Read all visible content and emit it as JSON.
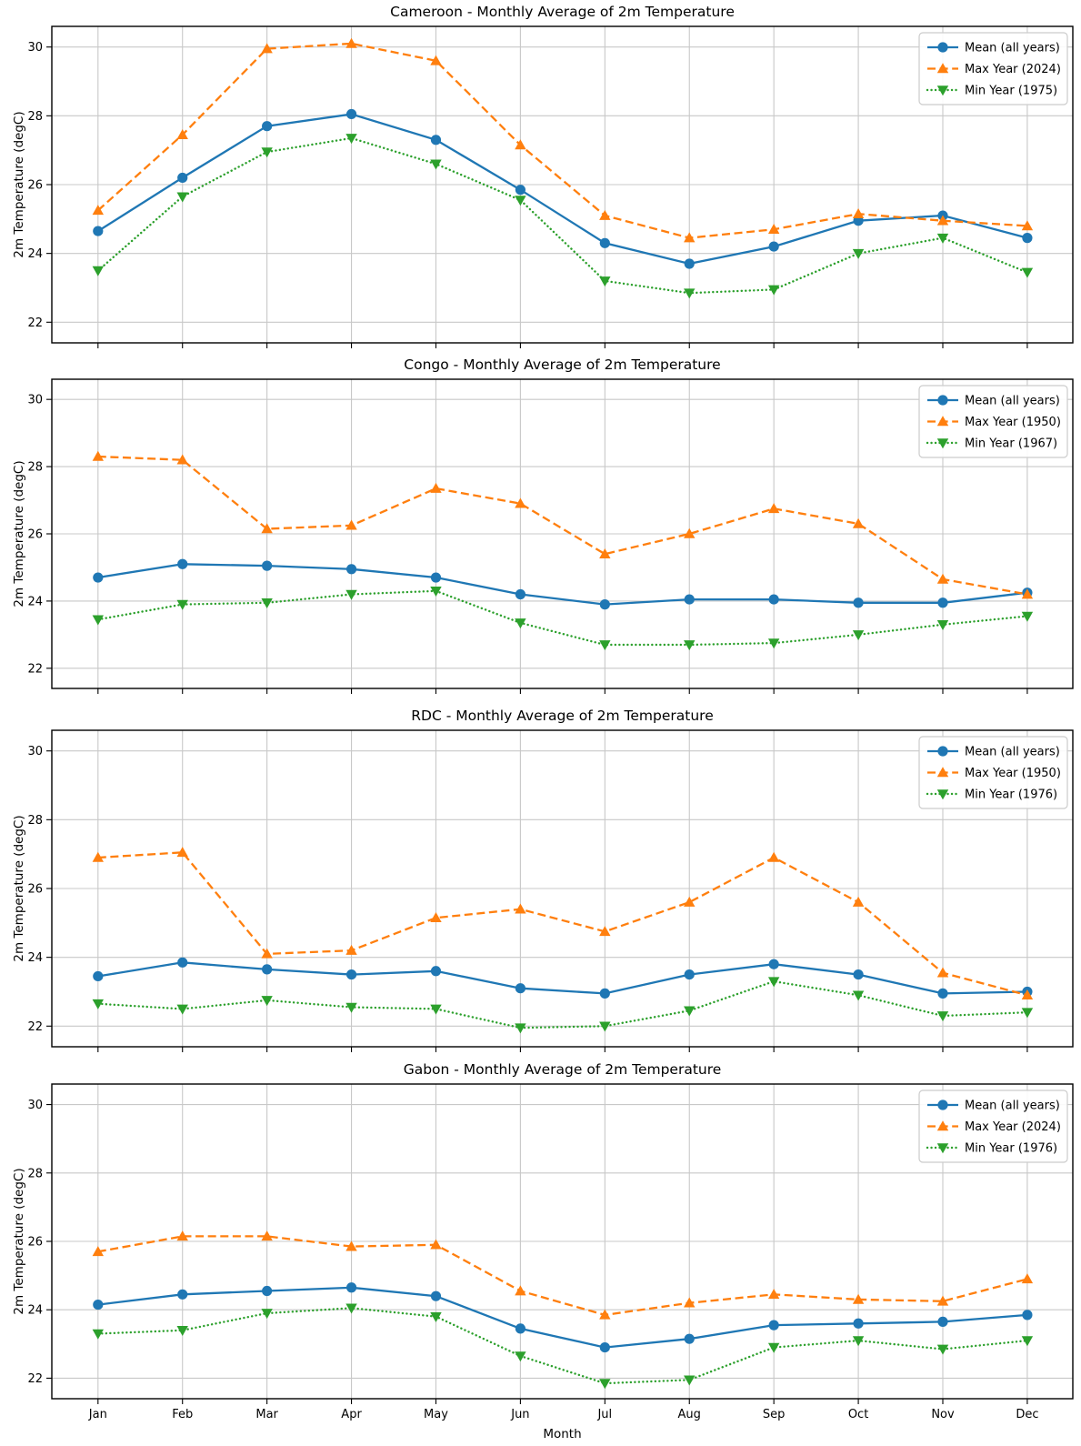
{
  "figure": {
    "xlabel": "Month",
    "ylabel": "2m Temperature (degC)",
    "months": [
      "Jan",
      "Feb",
      "Mar",
      "Apr",
      "May",
      "Jun",
      "Jul",
      "Aug",
      "Sep",
      "Oct",
      "Nov",
      "Dec"
    ],
    "yticks": [
      22,
      24,
      26,
      28,
      30
    ],
    "colors": {
      "mean": "#1f77b4",
      "max": "#ff7f0e",
      "min": "#2ca02c",
      "grid": "#c8c8c8",
      "axis": "#000000",
      "legend_border": "#cccccc"
    }
  },
  "chart_data": [
    {
      "type": "line",
      "title": "Cameroon - Monthly Average of 2m Temperature",
      "ylabel": "2m Temperature (degC)",
      "categories": [
        "Jan",
        "Feb",
        "Mar",
        "Apr",
        "May",
        "Jun",
        "Jul",
        "Aug",
        "Sep",
        "Oct",
        "Nov",
        "Dec"
      ],
      "ylim": [
        21.4,
        30.6
      ],
      "yticks": [
        22,
        24,
        26,
        28,
        30
      ],
      "grid": true,
      "legend_position": "upper right",
      "series": [
        {
          "name": "Mean (all years)",
          "style": "solid-circle",
          "color": "#1f77b4",
          "values": [
            24.65,
            26.2,
            27.7,
            28.05,
            27.3,
            25.85,
            24.3,
            23.7,
            24.2,
            24.95,
            25.1,
            24.45
          ]
        },
        {
          "name": "Max Year (2024)",
          "style": "dashed-triangle-up",
          "color": "#ff7f0e",
          "values": [
            25.25,
            27.45,
            29.95,
            30.1,
            29.6,
            27.15,
            25.1,
            24.45,
            24.7,
            25.15,
            24.95,
            24.8
          ]
        },
        {
          "name": "Min Year (1975)",
          "style": "dotted-triangle-down",
          "color": "#2ca02c",
          "values": [
            23.5,
            25.65,
            26.95,
            27.35,
            26.6,
            25.55,
            23.2,
            22.85,
            22.95,
            24.0,
            24.45,
            23.45
          ]
        }
      ]
    },
    {
      "type": "line",
      "title": "Congo - Monthly Average of 2m Temperature",
      "ylabel": "2m Temperature (degC)",
      "categories": [
        "Jan",
        "Feb",
        "Mar",
        "Apr",
        "May",
        "Jun",
        "Jul",
        "Aug",
        "Sep",
        "Oct",
        "Nov",
        "Dec"
      ],
      "ylim": [
        21.4,
        30.6
      ],
      "yticks": [
        22,
        24,
        26,
        28,
        30
      ],
      "grid": true,
      "legend_position": "upper right",
      "series": [
        {
          "name": "Mean (all years)",
          "style": "solid-circle",
          "color": "#1f77b4",
          "values": [
            24.7,
            25.1,
            25.05,
            24.95,
            24.7,
            24.2,
            23.9,
            24.05,
            24.05,
            23.95,
            23.95,
            24.25
          ]
        },
        {
          "name": "Max Year (1950)",
          "style": "dashed-triangle-up",
          "color": "#ff7f0e",
          "values": [
            28.3,
            28.2,
            26.15,
            26.25,
            27.35,
            26.9,
            25.4,
            26.0,
            26.75,
            26.3,
            24.65,
            24.2
          ]
        },
        {
          "name": "Min Year (1967)",
          "style": "dotted-triangle-down",
          "color": "#2ca02c",
          "values": [
            23.45,
            23.9,
            23.95,
            24.2,
            24.3,
            23.35,
            22.7,
            22.7,
            22.75,
            23.0,
            23.3,
            23.55
          ]
        }
      ]
    },
    {
      "type": "line",
      "title": "RDC - Monthly Average of 2m Temperature",
      "ylabel": "2m Temperature (degC)",
      "categories": [
        "Jan",
        "Feb",
        "Mar",
        "Apr",
        "May",
        "Jun",
        "Jul",
        "Aug",
        "Sep",
        "Oct",
        "Nov",
        "Dec"
      ],
      "ylim": [
        21.4,
        30.6
      ],
      "yticks": [
        22,
        24,
        26,
        28,
        30
      ],
      "grid": true,
      "legend_position": "upper right",
      "series": [
        {
          "name": "Mean (all years)",
          "style": "solid-circle",
          "color": "#1f77b4",
          "values": [
            23.45,
            23.85,
            23.65,
            23.5,
            23.6,
            23.1,
            22.95,
            23.5,
            23.8,
            23.5,
            22.95,
            23.0
          ]
        },
        {
          "name": "Max Year (1950)",
          "style": "dashed-triangle-up",
          "color": "#ff7f0e",
          "values": [
            26.9,
            27.05,
            24.1,
            24.2,
            25.15,
            25.4,
            24.75,
            25.6,
            26.9,
            25.6,
            23.55,
            22.9
          ]
        },
        {
          "name": "Min Year (1976)",
          "style": "dotted-triangle-down",
          "color": "#2ca02c",
          "values": [
            22.65,
            22.5,
            22.75,
            22.55,
            22.5,
            21.95,
            22.0,
            22.45,
            23.3,
            22.9,
            22.3,
            22.4
          ]
        }
      ]
    },
    {
      "type": "line",
      "title": "Gabon - Monthly Average of 2m Temperature",
      "xlabel": "Month",
      "ylabel": "2m Temperature (degC)",
      "categories": [
        "Jan",
        "Feb",
        "Mar",
        "Apr",
        "May",
        "Jun",
        "Jul",
        "Aug",
        "Sep",
        "Oct",
        "Nov",
        "Dec"
      ],
      "ylim": [
        21.4,
        30.6
      ],
      "yticks": [
        22,
        24,
        26,
        28,
        30
      ],
      "grid": true,
      "legend_position": "upper right",
      "series": [
        {
          "name": "Mean (all years)",
          "style": "solid-circle",
          "color": "#1f77b4",
          "values": [
            24.15,
            24.45,
            24.55,
            24.65,
            24.4,
            23.45,
            22.9,
            23.15,
            23.55,
            23.6,
            23.65,
            23.85
          ]
        },
        {
          "name": "Max Year (2024)",
          "style": "dashed-triangle-up",
          "color": "#ff7f0e",
          "values": [
            25.7,
            26.15,
            26.15,
            25.85,
            25.9,
            24.55,
            23.85,
            24.2,
            24.45,
            24.3,
            24.25,
            24.9
          ]
        },
        {
          "name": "Min Year (1976)",
          "style": "dotted-triangle-down",
          "color": "#2ca02c",
          "values": [
            23.3,
            23.4,
            23.9,
            24.05,
            23.8,
            22.65,
            21.85,
            21.95,
            22.9,
            23.1,
            22.85,
            23.1
          ]
        }
      ]
    }
  ]
}
